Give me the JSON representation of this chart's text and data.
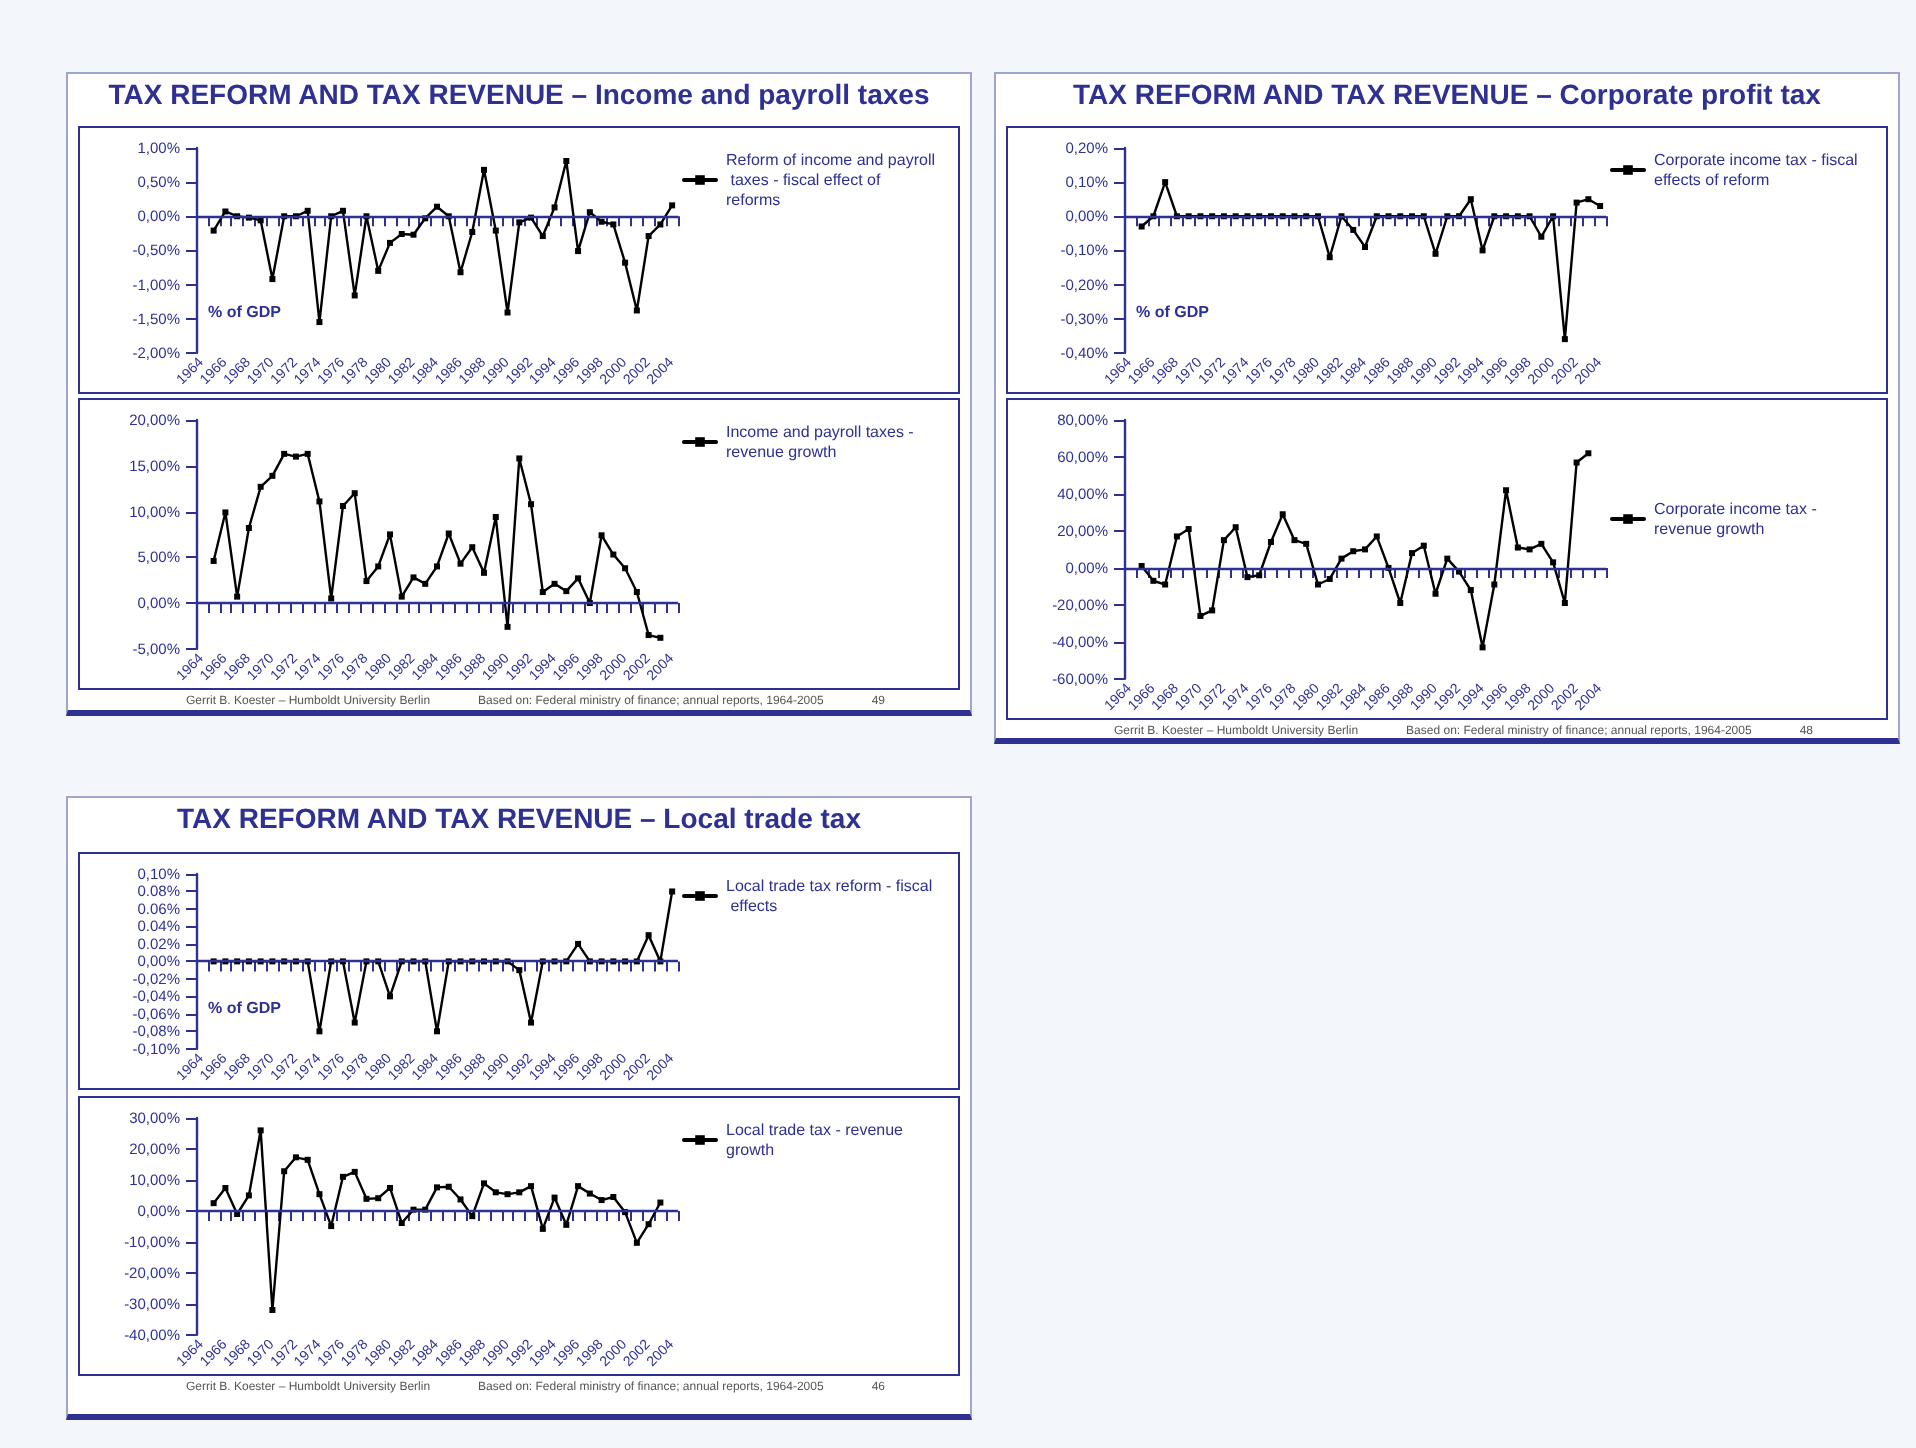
{
  "chart_data": [
    {
      "type": "line",
      "title": "TAX REFORM AND TAX REVENUE – Income and payroll taxes",
      "categories": [
        "1964",
        null,
        "1966",
        null,
        "1968",
        null,
        "1970",
        null,
        "1972",
        null,
        "1974",
        null,
        "1976",
        null,
        "1978",
        null,
        "1980",
        null,
        "1982",
        null,
        "1984",
        null,
        "1986",
        null,
        "1988",
        null,
        "1990",
        null,
        "1992",
        null,
        "1994",
        null,
        "1996",
        null,
        "1998",
        null,
        "2000",
        null,
        "2002",
        null,
        "2004"
      ],
      "series": [
        {
          "name": "Reform of income and payroll taxes - fiscal effect of reforms",
          "color": "#000000",
          "values": [
            null,
            -0.21,
            0.07,
            0,
            -0.02,
            -0.06,
            -0.92,
            0,
            0,
            0.08,
            -1.55,
            0,
            0.08,
            -1.16,
            0,
            -0.8,
            -0.39,
            -0.26,
            -0.27,
            -0.03,
            0.14,
            0,
            -0.82,
            -0.23,
            0.68,
            -0.21,
            -1.41,
            -0.09,
            -0.02,
            -0.29,
            0.13,
            0.81,
            -0.51,
            0.06,
            -0.08,
            -0.12,
            -0.68,
            -1.38,
            -0.29,
            -0.12,
            0.16
          ]
        }
      ],
      "ylim": [
        -2,
        1
      ],
      "yticks": [
        {
          "value": -2,
          "label": "-2,00%"
        },
        {
          "value": -1.5,
          "label": "-1,50%"
        },
        {
          "value": -1,
          "label": "-1,00%"
        },
        {
          "value": -0.5,
          "label": "-0,50%"
        },
        {
          "value": 0,
          "label": "0,00%"
        },
        {
          "value": 0.5,
          "label": "0,50%"
        },
        {
          "value": 1,
          "label": "1,00%"
        }
      ],
      "legend": "top right",
      "marker": "square",
      "ref_lines": [
        {
          "axis": "y",
          "value": 0,
          "color": "#2e3192"
        }
      ],
      "annotations": [
        "% of GDP"
      ]
    },
    {
      "type": "line",
      "categories": [
        "1964",
        null,
        "1966",
        null,
        "1968",
        null,
        "1970",
        null,
        "1972",
        null,
        "1974",
        null,
        "1976",
        null,
        "1978",
        null,
        "1980",
        null,
        "1982",
        null,
        "1984",
        null,
        "1986",
        null,
        "1988",
        null,
        "1990",
        null,
        "1992",
        null,
        "1994",
        null,
        "1996",
        null,
        "1998",
        null,
        "2000",
        null,
        "2002",
        null,
        "2004"
      ],
      "series": [
        {
          "name": "Income and payroll taxes - revenue growth",
          "color": "#000000",
          "values": [
            null,
            4.6,
            9.9,
            0.7,
            8.2,
            12.7,
            13.9,
            16.3,
            16.0,
            16.3,
            11.1,
            0.5,
            10.6,
            12.0,
            2.4,
            4.0,
            7.5,
            0.7,
            2.8,
            2.1,
            4.0,
            7.6,
            4.3,
            6.1,
            3.3,
            9.4,
            -2.6,
            15.8,
            10.8,
            1.2,
            2.1,
            1.3,
            2.7,
            0.0,
            7.4,
            5.3,
            3.8,
            1.2,
            -3.5,
            -3.8,
            null
          ]
        }
      ],
      "ylim": [
        -5,
        20
      ],
      "yticks": [
        {
          "value": -5,
          "label": "-5,00%"
        },
        {
          "value": 0,
          "label": "0,00%"
        },
        {
          "value": 5,
          "label": "5,00%"
        },
        {
          "value": 10,
          "label": "10,00%"
        },
        {
          "value": 15,
          "label": "15,00%"
        },
        {
          "value": 20,
          "label": "20,00%"
        }
      ],
      "legend": "top right",
      "marker": "square",
      "ref_lines": [
        {
          "axis": "y",
          "value": 0,
          "color": "#2e3192"
        }
      ],
      "annotations": [
        "Gerrit B. Koester – Humboldt University Berlin",
        "Based on: Federal ministry of finance; annual reports, 1964-2005",
        "49"
      ]
    },
    {
      "type": "line",
      "title": "TAX REFORM AND TAX REVENUE – Corporate profit tax",
      "categories": [
        "1964",
        null,
        "1966",
        null,
        "1968",
        null,
        "1970",
        null,
        "1972",
        null,
        "1974",
        null,
        "1976",
        null,
        "1978",
        null,
        "1980",
        null,
        "1982",
        null,
        "1984",
        null,
        "1986",
        null,
        "1988",
        null,
        "1990",
        null,
        "1992",
        null,
        "1994",
        null,
        "1996",
        null,
        "1998",
        null,
        "2000",
        null,
        "2002",
        null,
        "2004"
      ],
      "series": [
        {
          "name": "Corporate income tax - fiscal effects of reform",
          "color": "#000000",
          "values": [
            null,
            -0.03,
            0,
            0.1,
            0,
            0,
            0,
            0,
            0,
            0,
            0,
            0,
            0,
            0,
            0,
            0,
            0,
            -0.12,
            0,
            -0.04,
            -0.09,
            0,
            0,
            0,
            0,
            0,
            -0.11,
            0,
            0,
            0.05,
            -0.1,
            0,
            0,
            0,
            0,
            -0.06,
            0,
            -0.36,
            0.04,
            0.05,
            0.03
          ]
        }
      ],
      "ylim": [
        -0.4,
        0.2
      ],
      "yticks": [
        {
          "value": -0.4,
          "label": "-0,40%"
        },
        {
          "value": -0.3,
          "label": "-0,30%"
        },
        {
          "value": -0.2,
          "label": "-0,20%"
        },
        {
          "value": -0.1,
          "label": "-0,10%"
        },
        {
          "value": 0,
          "label": "0,00%"
        },
        {
          "value": 0.1,
          "label": "0,10%"
        },
        {
          "value": 0.2,
          "label": "0,20%"
        }
      ],
      "legend": "top right",
      "marker": "square",
      "ref_lines": [
        {
          "axis": "y",
          "value": 0,
          "color": "#2e3192"
        }
      ],
      "annotations": [
        "% of GDP"
      ]
    },
    {
      "type": "line",
      "categories": [
        "1964",
        null,
        "1966",
        null,
        "1968",
        null,
        "1970",
        null,
        "1972",
        null,
        "1974",
        null,
        "1976",
        null,
        "1978",
        null,
        "1980",
        null,
        "1982",
        null,
        "1984",
        null,
        "1986",
        null,
        "1988",
        null,
        "1990",
        null,
        "1992",
        null,
        "1994",
        null,
        "1996",
        null,
        "1998",
        null,
        "2000",
        null,
        "2002",
        null,
        "2004"
      ],
      "series": [
        {
          "name": "Corporate income tax - revenue growth",
          "color": "#000000",
          "values": [
            null,
            1,
            -7,
            -9,
            17,
            21,
            -26,
            -23,
            15,
            22,
            -5,
            -4,
            14,
            29,
            15,
            13,
            -9,
            -6,
            5,
            9,
            10,
            17,
            0,
            -19,
            8,
            12,
            -14,
            5,
            -2,
            -12,
            -43,
            -9,
            42,
            11,
            10,
            13,
            3,
            -19,
            57,
            62,
            null
          ]
        }
      ],
      "ylim": [
        -60,
        80
      ],
      "yticks": [
        {
          "value": -60,
          "label": "-60,00%"
        },
        {
          "value": -40,
          "label": "-40,00%"
        },
        {
          "value": -20,
          "label": "-20,00%"
        },
        {
          "value": 0,
          "label": "0,00%"
        },
        {
          "value": 20,
          "label": "20,00%"
        },
        {
          "value": 40,
          "label": "40,00%"
        },
        {
          "value": 60,
          "label": "60,00%"
        },
        {
          "value": 80,
          "label": "80,00%"
        }
      ],
      "legend": "right",
      "marker": "square",
      "ref_lines": [
        {
          "axis": "y",
          "value": 0,
          "color": "#2e3192"
        }
      ],
      "annotations": [
        "Gerrit B. Koester – Humboldt University Berlin",
        "Based on: Federal ministry of finance; annual reports, 1964-2005",
        "48"
      ]
    },
    {
      "type": "line",
      "title": "TAX REFORM AND TAX REVENUE – Local trade tax",
      "categories": [
        "1964",
        null,
        "1966",
        null,
        "1968",
        null,
        "1970",
        null,
        "1972",
        null,
        "1974",
        null,
        "1976",
        null,
        "1978",
        null,
        "1980",
        null,
        "1982",
        null,
        "1984",
        null,
        "1986",
        null,
        "1988",
        null,
        "1990",
        null,
        "1992",
        null,
        "1994",
        null,
        "1996",
        null,
        "1998",
        null,
        "2000",
        null,
        "2002",
        null,
        "2004"
      ],
      "series": [
        {
          "name": "Local trade tax reform - fiscal effects",
          "color": "#000000",
          "values": [
            null,
            0,
            0,
            0,
            0,
            0,
            0,
            0,
            0,
            0,
            -0.08,
            0,
            0,
            -0.07,
            0,
            0,
            -0.04,
            0,
            0,
            0,
            -0.08,
            0,
            0,
            0,
            0,
            0,
            0,
            -0.01,
            -0.07,
            0,
            0,
            0,
            0.02,
            0,
            0,
            0,
            0,
            0,
            0.03,
            0,
            0.08
          ]
        }
      ],
      "ylim": [
        -0.1,
        0.1
      ],
      "yticks": [
        {
          "value": -0.1,
          "label": "-0,10%"
        },
        {
          "value": -0.08,
          "label": "-0,08%"
        },
        {
          "value": -0.06,
          "label": "-0,06%"
        },
        {
          "value": -0.04,
          "label": "-0,04%"
        },
        {
          "value": -0.02,
          "label": "-0,02%"
        },
        {
          "value": 0,
          "label": "0,00%"
        },
        {
          "value": 0.02,
          "label": "0.02%"
        },
        {
          "value": 0.04,
          "label": "0.04%"
        },
        {
          "value": 0.06,
          "label": "0.06%"
        },
        {
          "value": 0.08,
          "label": "0.08%"
        },
        {
          "value": 0.1,
          "label": "0,10%"
        }
      ],
      "legend": "top right",
      "marker": "square",
      "ref_lines": [
        {
          "axis": "y",
          "value": 0,
          "color": "#2e3192"
        }
      ],
      "annotations": [
        "% of GDP"
      ]
    },
    {
      "type": "line",
      "categories": [
        "1964",
        null,
        "1966",
        null,
        "1968",
        null,
        "1970",
        null,
        "1972",
        null,
        "1974",
        null,
        "1976",
        null,
        "1978",
        null,
        "1980",
        null,
        "1982",
        null,
        "1984",
        null,
        "1986",
        null,
        "1988",
        null,
        "1990",
        null,
        "1992",
        null,
        "1994",
        null,
        "1996",
        null,
        "1998",
        null,
        "2000",
        null,
        "2002",
        null,
        "2004"
      ],
      "series": [
        {
          "name": "Local trade tax - revenue growth",
          "color": "#000000",
          "values": [
            null,
            2.5,
            7.4,
            -1,
            5,
            26,
            -32,
            12.8,
            17.3,
            16.5,
            5.4,
            -4.9,
            11,
            12.6,
            3.9,
            4.1,
            7.4,
            -3.9,
            0.4,
            0.4,
            7.6,
            7.8,
            3.7,
            -1.7,
            8.9,
            6,
            5.4,
            6,
            8,
            -5.8,
            4.3,
            -4.5,
            8,
            5.6,
            3.5,
            4.5,
            -0.4,
            -10.3,
            -4.3,
            2.7,
            null
          ]
        }
      ],
      "ylim": [
        -40,
        30
      ],
      "yticks": [
        {
          "value": -40,
          "label": "-40,00%"
        },
        {
          "value": -30,
          "label": "-30,00%"
        },
        {
          "value": -20,
          "label": "-20,00%"
        },
        {
          "value": -10,
          "label": "-10,00%"
        },
        {
          "value": 0,
          "label": "0,00%"
        },
        {
          "value": 10,
          "label": "10,00%"
        },
        {
          "value": 20,
          "label": "20,00%"
        },
        {
          "value": 30,
          "label": "30,00%"
        }
      ],
      "legend": "top right",
      "marker": "square",
      "ref_lines": [
        {
          "axis": "y",
          "value": 0,
          "color": "#2e3192"
        }
      ],
      "annotations": [
        "Gerrit B. Koester – Humboldt University Berlin",
        "Based on: Federal ministry of finance; annual reports, 1964-2005",
        "46"
      ]
    }
  ]
}
